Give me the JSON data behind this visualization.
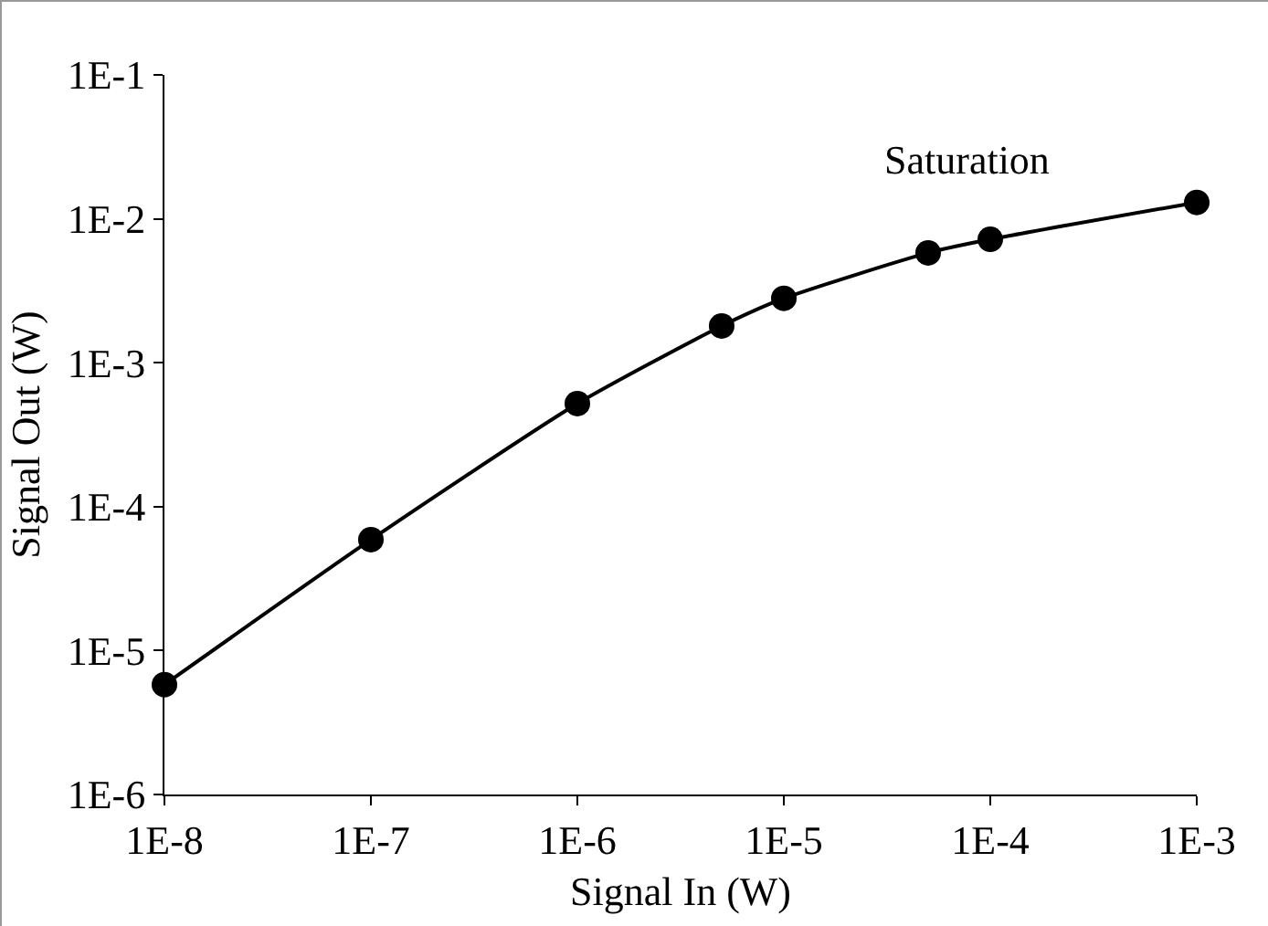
{
  "chart_data": {
    "type": "line",
    "xlabel": "Signal In (W)",
    "ylabel": "Signal Out (W)",
    "annotations": [
      "Saturation"
    ],
    "log": "xy",
    "grid": false,
    "marker": "circle",
    "line_style": "solid",
    "x": [
      1e-08,
      1e-07,
      1e-06,
      5e-06,
      1e-05,
      5e-05,
      0.0001,
      0.001
    ],
    "series": [
      {
        "color": "#000000",
        "values": [
          5.8e-06,
          5.9e-05,
          0.00052,
          0.0018,
          0.0028,
          0.0058,
          0.0072,
          0.013
        ]
      }
    ],
    "xlim": [
      1e-08,
      0.001
    ],
    "ylim": [
      1e-06,
      0.1
    ],
    "xticks": [
      {
        "value": 1e-08,
        "label": "1E-8"
      },
      {
        "value": 1e-07,
        "label": "1E-7"
      },
      {
        "value": 1e-06,
        "label": "1E-6"
      },
      {
        "value": 1e-05,
        "label": "1E-5"
      },
      {
        "value": 0.0001,
        "label": "1E-4"
      },
      {
        "value": 0.001,
        "label": "1E-3"
      }
    ],
    "yticks": [
      {
        "value": 1e-06,
        "label": "1E-6"
      },
      {
        "value": 1e-05,
        "label": "1E-5"
      },
      {
        "value": 0.0001,
        "label": "1E-4"
      },
      {
        "value": 0.001,
        "label": "1E-3"
      },
      {
        "value": 0.01,
        "label": "1E-2"
      },
      {
        "value": 0.1,
        "label": "1E-1"
      }
    ]
  }
}
